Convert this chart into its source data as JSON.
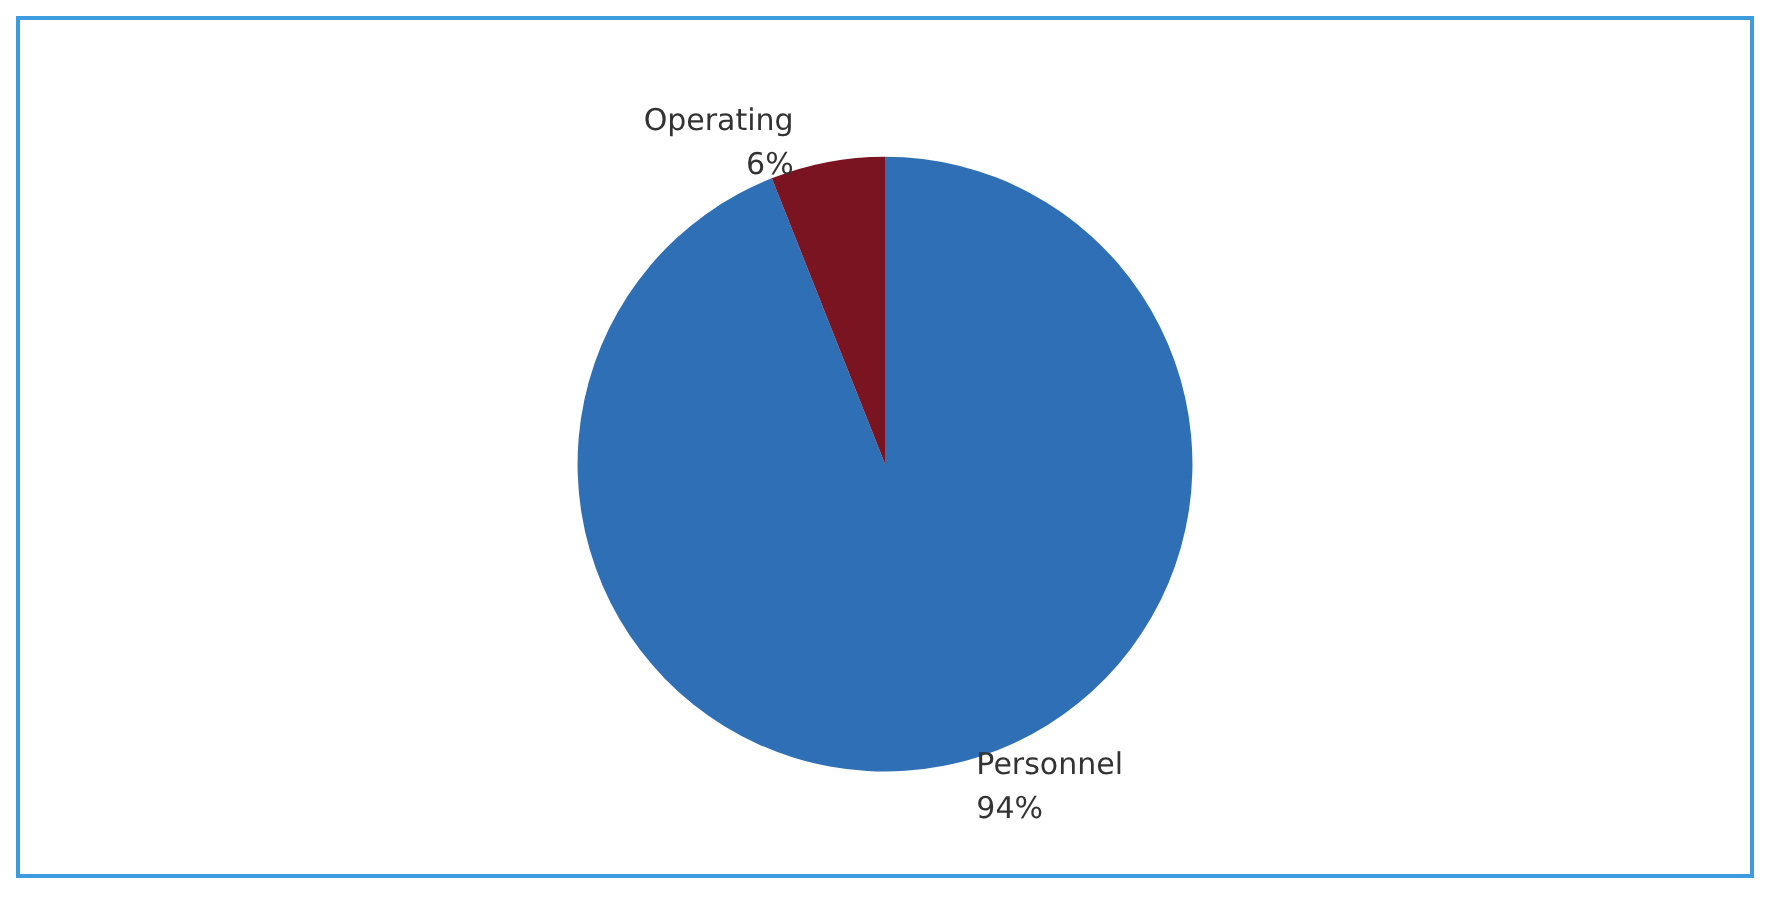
{
  "chart_data": {
    "type": "pie",
    "categories": [
      "Personnel",
      "Operating"
    ],
    "values": [
      94,
      6
    ],
    "value_labels": [
      "94%",
      "6%"
    ],
    "colors": [
      "#2f6fb5",
      "#7a1421"
    ]
  }
}
